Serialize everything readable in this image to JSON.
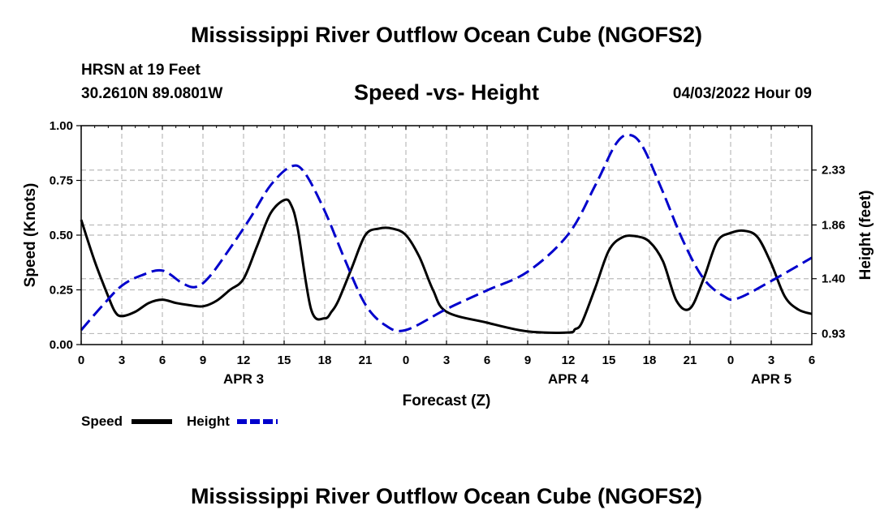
{
  "header": {
    "title": "Mississippi River Outflow Ocean Cube (NGOFS2)",
    "station_name": "HRSN at 19 Feet",
    "coordinates": "30.2610N  89.0801W",
    "datetime": "04/03/2022 Hour 09"
  },
  "footer": {
    "title": "Mississippi River Outflow Ocean Cube (NGOFS2)"
  },
  "chart_data": {
    "type": "line",
    "title": "Speed -vs- Height",
    "xlabel": "Forecast (Z)",
    "ylabel": "Speed (Knots)",
    "y2label": "Height (feet)",
    "xlim": [
      0,
      54
    ],
    "ylim": [
      0,
      1.0
    ],
    "y2lim": [
      0.836,
      2.71
    ],
    "grid": true,
    "x_ticks": [
      0,
      3,
      6,
      9,
      12,
      15,
      18,
      21,
      24,
      27,
      30,
      33,
      36,
      39,
      42,
      45,
      48,
      51,
      54
    ],
    "x_tick_labels": [
      "0",
      "3",
      "6",
      "9",
      "12",
      "15",
      "18",
      "21",
      "0",
      "3",
      "6",
      "9",
      "12",
      "15",
      "18",
      "21",
      "0",
      "3",
      "6"
    ],
    "y_ticks": [
      0,
      0.25,
      0.5,
      0.75,
      1.0
    ],
    "y_tick_labels": [
      "0.00",
      "0.25",
      "0.50",
      "0.75",
      "1.00"
    ],
    "y2_ticks": [
      0.93,
      1.4,
      1.86,
      2.33
    ],
    "y2_tick_labels": [
      "0.93",
      "1.40",
      "1.86",
      "2.33"
    ],
    "day_labels": [
      {
        "x": 12,
        "label": "APR 3"
      },
      {
        "x": 36,
        "label": "APR 4"
      },
      {
        "x": 51,
        "label": "APR 5"
      }
    ],
    "legend_position": "bottom-left",
    "series": [
      {
        "name": "Speed",
        "color": "#000000",
        "style": "solid",
        "axis": "left",
        "x": [
          0,
          1,
          2,
          2.5,
          3,
          4,
          5,
          6,
          7,
          8,
          9,
          10,
          11,
          12,
          13,
          14,
          15,
          15.5,
          16,
          17,
          18,
          18.5,
          19,
          20,
          21,
          22,
          23,
          24,
          25,
          26,
          27,
          30,
          33,
          36,
          36.5,
          37,
          38,
          39,
          40,
          41,
          42,
          43,
          44,
          45,
          46,
          47,
          48,
          49,
          50,
          51,
          52,
          53,
          54
        ],
        "values": [
          0.57,
          0.38,
          0.22,
          0.15,
          0.13,
          0.15,
          0.19,
          0.205,
          0.19,
          0.18,
          0.175,
          0.2,
          0.25,
          0.3,
          0.45,
          0.6,
          0.66,
          0.64,
          0.53,
          0.16,
          0.12,
          0.15,
          0.2,
          0.35,
          0.5,
          0.53,
          0.53,
          0.5,
          0.4,
          0.25,
          0.15,
          0.1,
          0.06,
          0.055,
          0.07,
          0.1,
          0.26,
          0.43,
          0.49,
          0.495,
          0.47,
          0.38,
          0.2,
          0.165,
          0.3,
          0.47,
          0.51,
          0.52,
          0.49,
          0.37,
          0.22,
          0.16,
          0.14
        ]
      },
      {
        "name": "Height",
        "color": "#0000cc",
        "style": "dashed",
        "axis": "right",
        "x": [
          0,
          1.5,
          3,
          4.5,
          6,
          7.5,
          8.5,
          9.5,
          11,
          12.5,
          14,
          15.5,
          16.5,
          18,
          19.5,
          21,
          22.5,
          24,
          27,
          30,
          33,
          36,
          38,
          39.5,
          40.5,
          41.5,
          43,
          44.5,
          46,
          47.5,
          48.5,
          51,
          54
        ],
        "values": [
          0.96,
          1.16,
          1.34,
          1.43,
          1.47,
          1.36,
          1.33,
          1.42,
          1.66,
          1.92,
          2.2,
          2.36,
          2.31,
          1.98,
          1.56,
          1.18,
          1.0,
          0.96,
          1.14,
          1.3,
          1.46,
          1.78,
          2.2,
          2.55,
          2.63,
          2.53,
          2.14,
          1.72,
          1.4,
          1.25,
          1.23,
          1.38,
          1.58
        ]
      }
    ]
  }
}
